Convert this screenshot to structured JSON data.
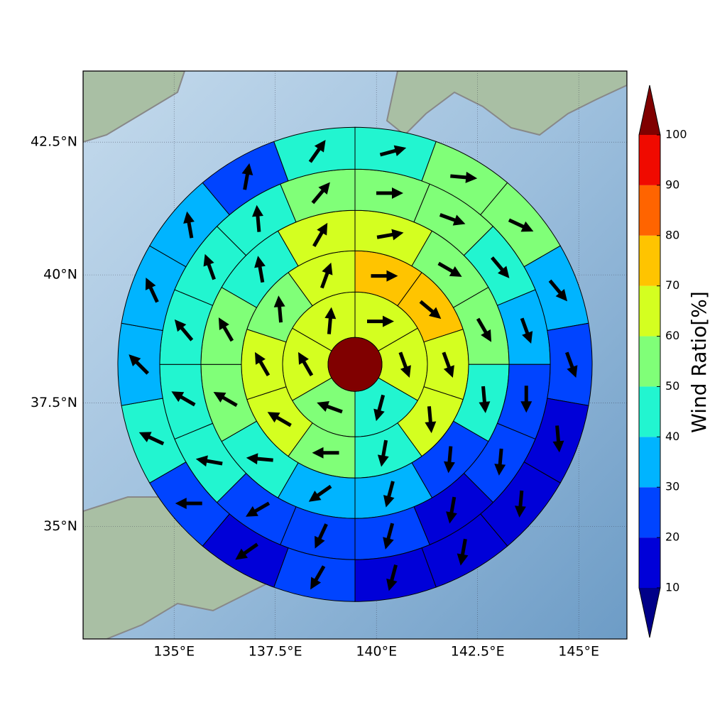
{
  "chart_data": {
    "type": "polar_map",
    "projection": "mercator",
    "xlim": [
      132.75,
      146.19
    ],
    "ylim": [
      32.66,
      43.8
    ],
    "xticks": [
      {
        "value": 135,
        "label": "135°E"
      },
      {
        "value": 137.5,
        "label": "137.5°E"
      },
      {
        "value": 140,
        "label": "140°E"
      },
      {
        "value": 142.5,
        "label": "142.5°E"
      },
      {
        "value": 145,
        "label": "145°E"
      }
    ],
    "yticks": [
      {
        "value": 35,
        "label": "35°N"
      },
      {
        "value": 37.5,
        "label": "37.5°N"
      },
      {
        "value": 40,
        "label": "40°N"
      },
      {
        "value": 42.5,
        "label": "42.5°N"
      }
    ],
    "grid": true,
    "center": {
      "lon": 139.47,
      "lat": 38.26,
      "value": 105
    },
    "rings": [
      {
        "values": [
          65,
          63,
          45,
          55,
          62,
          63
        ],
        "directions": [
          90,
          160,
          195,
          290,
          330,
          5
        ]
      },
      {
        "values": [
          75,
          72,
          62,
          60,
          45,
          55,
          62,
          65,
          55,
          65
        ],
        "directions": [
          90,
          130,
          160,
          175,
          190,
          270,
          300,
          330,
          355,
          20
        ]
      },
      {
        "values": [
          63,
          55,
          52,
          42,
          25,
          35,
          35,
          45,
          55,
          55,
          45,
          63
        ],
        "directions": [
          80,
          120,
          150,
          175,
          185,
          195,
          235,
          275,
          300,
          330,
          350,
          30
        ]
      },
      {
        "values": [
          52,
          55,
          45,
          38,
          25,
          22,
          18,
          22,
          22,
          25,
          42,
          42,
          45,
          40,
          42,
          55
        ],
        "directions": [
          90,
          110,
          140,
          160,
          180,
          185,
          190,
          195,
          205,
          240,
          280,
          300,
          320,
          340,
          355,
          40
        ]
      },
      {
        "values": [
          42,
          55,
          55,
          35,
          25,
          15,
          15,
          18,
          15,
          25,
          15,
          25,
          42,
          38,
          38,
          35,
          25,
          42
        ],
        "directions": [
          75,
          95,
          115,
          140,
          160,
          175,
          185,
          190,
          195,
          210,
          235,
          270,
          295,
          315,
          335,
          350,
          10,
          35
        ]
      }
    ],
    "colorbar": {
      "label": "Wind Ratio[%]",
      "levels": [
        10,
        20,
        30,
        40,
        50,
        60,
        70,
        80,
        90,
        100
      ],
      "colors": [
        "#0000d8",
        "#0044ff",
        "#00b4ff",
        "#22f5d0",
        "#80ff78",
        "#d4ff20",
        "#ffc400",
        "#ff6400",
        "#f00a00"
      ],
      "under": "#000088",
      "over": "#800000"
    }
  }
}
